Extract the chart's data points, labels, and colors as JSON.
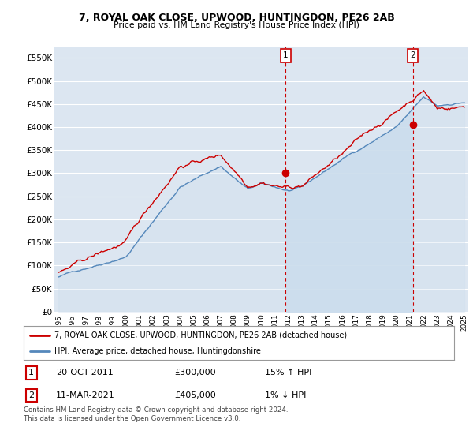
{
  "title": "7, ROYAL OAK CLOSE, UPWOOD, HUNTINGDON, PE26 2AB",
  "subtitle": "Price paid vs. HM Land Registry's House Price Index (HPI)",
  "ylim": [
    0,
    575000
  ],
  "yticks": [
    0,
    50000,
    100000,
    150000,
    200000,
    250000,
    300000,
    350000,
    400000,
    450000,
    500000,
    550000
  ],
  "ytick_labels": [
    "£0",
    "£50K",
    "£100K",
    "£150K",
    "£200K",
    "£250K",
    "£300K",
    "£350K",
    "£400K",
    "£450K",
    "£500K",
    "£550K"
  ],
  "background_color": "#ffffff",
  "plot_bg_color": "#dce6f1",
  "grid_color": "#ffffff",
  "sale1_year": 2011.8,
  "sale1_price": 300000,
  "sale2_year": 2021.2,
  "sale2_price": 405000,
  "legend_line1": "7, ROYAL OAK CLOSE, UPWOOD, HUNTINGDON, PE26 2AB (detached house)",
  "legend_line2": "HPI: Average price, detached house, Huntingdonshire",
  "table_row1": [
    "1",
    "20-OCT-2011",
    "£300,000",
    "15% ↑ HPI"
  ],
  "table_row2": [
    "2",
    "11-MAR-2021",
    "£405,000",
    "1% ↓ HPI"
  ],
  "footnote": "Contains HM Land Registry data © Crown copyright and database right 2024.\nThis data is licensed under the Open Government Licence v3.0.",
  "line_red_color": "#cc0000",
  "line_blue_color": "#5588bb",
  "fill_blue_color": "#ccdded",
  "xmin": 1995.0,
  "xmax": 2025.0
}
